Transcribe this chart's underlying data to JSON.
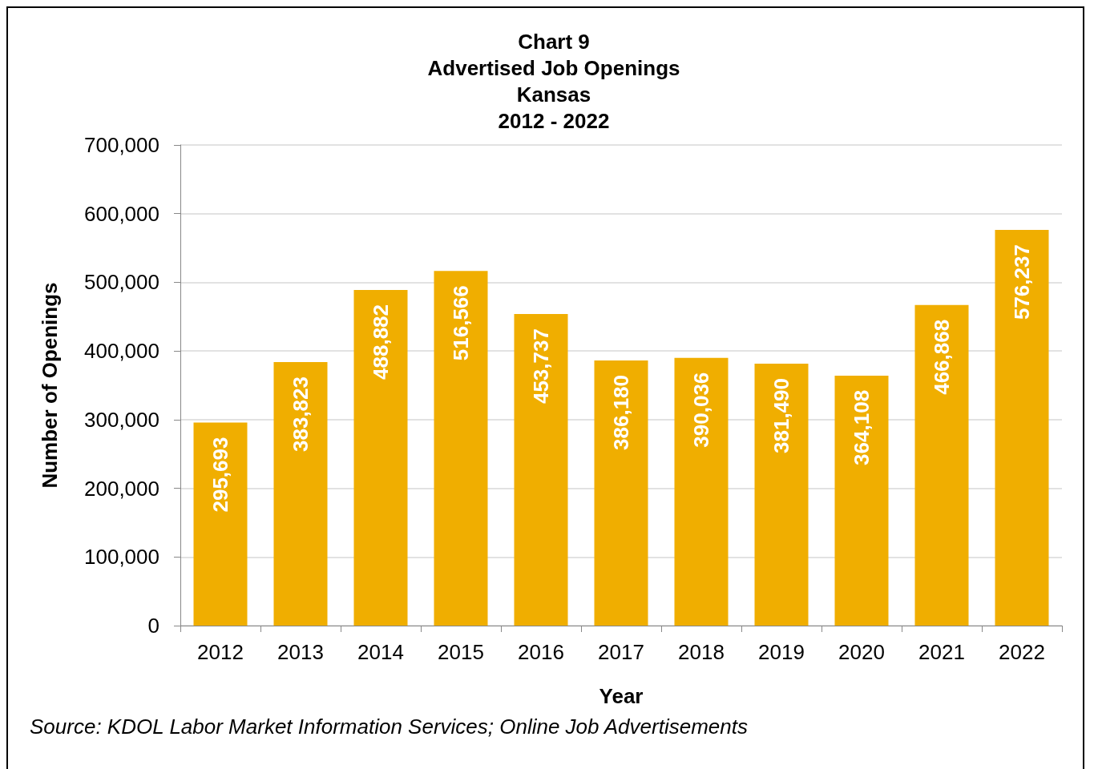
{
  "chart_data": {
    "type": "bar",
    "title": "Chart 9\nAdvertised Job Openings\nKansas\n2012 - 2022",
    "xlabel": "Year",
    "ylabel": "Number of Openings",
    "categories": [
      "2012",
      "2013",
      "2014",
      "2015",
      "2016",
      "2017",
      "2018",
      "2019",
      "2020",
      "2021",
      "2022"
    ],
    "values": [
      295693,
      383823,
      488882,
      516566,
      453737,
      386180,
      390036,
      381490,
      364108,
      466868,
      576237
    ],
    "color": "#f0ae00",
    "ylim": [
      0,
      700000
    ],
    "yticks": [
      {
        "value": 0,
        "label": "0"
      },
      {
        "value": 100000,
        "label": "100,000"
      },
      {
        "value": 200000,
        "label": "200,000"
      },
      {
        "value": 300000,
        "label": "300,000"
      },
      {
        "value": 400000,
        "label": "400,000"
      },
      {
        "value": 500000,
        "label": "500,000"
      },
      {
        "value": 600000,
        "label": "600,000"
      },
      {
        "value": 700000,
        "label": "700,000"
      }
    ],
    "grid": "y",
    "value_labels": [
      "295,693",
      "383,823",
      "488,882",
      "516,566",
      "453,737",
      "386,180",
      "390,036",
      "381,490",
      "364,108",
      "466,868",
      "576,237"
    ],
    "annotations": [
      "Source: KDOL Labor Market Information Services; Online Job Advertisements"
    ]
  }
}
